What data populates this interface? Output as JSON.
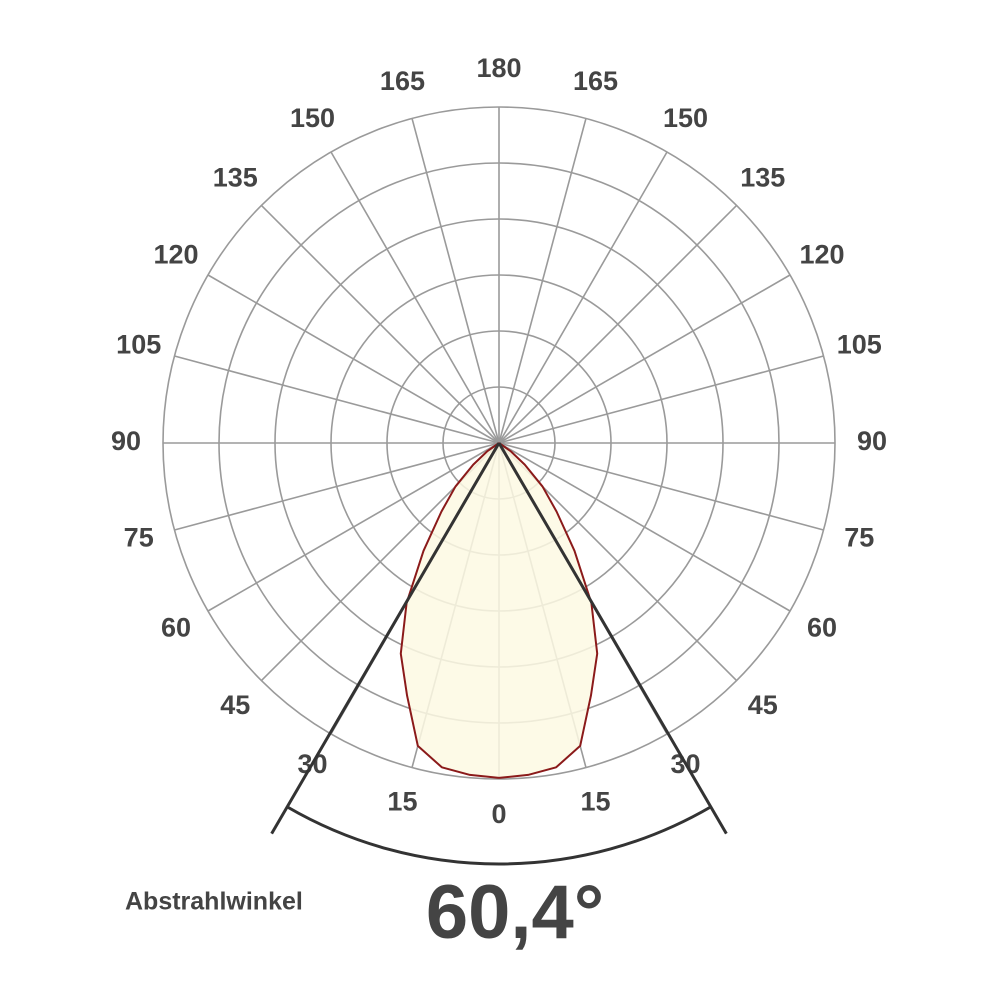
{
  "chart_data": {
    "type": "polar",
    "angle_ticks": [
      0,
      15,
      30,
      45,
      60,
      75,
      90,
      105,
      120,
      135,
      150,
      165,
      180
    ],
    "rlim": [
      0,
      6
    ],
    "rticks": [
      1,
      2,
      3,
      4,
      5,
      6
    ],
    "angles": [
      0,
      5,
      10,
      15,
      20,
      25,
      30,
      35,
      40,
      45,
      50,
      55,
      60
    ],
    "values": [
      5.98,
      5.95,
      5.88,
      5.6,
      4.8,
      4.15,
      3.3,
      2.35,
      1.6,
      1.1,
      0.6,
      0.25,
      0
    ],
    "symmetric": true,
    "color": "#8b1a1a",
    "fill": "#fdf9e3",
    "grid_color": "#9a9a9a",
    "beam_color": "#333333",
    "beam_label": "Abstrahlwinkel",
    "beam_angle": 60.4,
    "beam_angle_label": "60,4°"
  }
}
